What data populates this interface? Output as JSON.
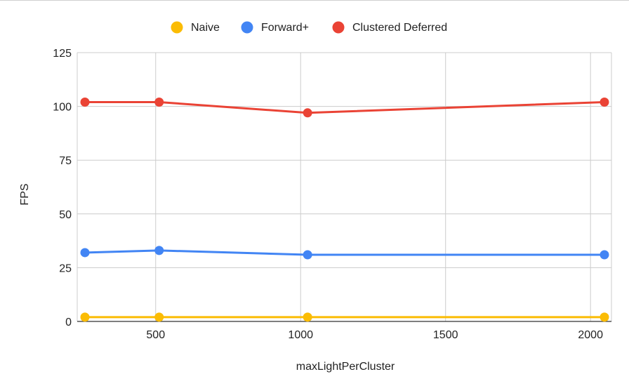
{
  "chart_data": {
    "type": "line",
    "title": "",
    "xlabel": "maxLightPerCluster",
    "ylabel": "FPS",
    "x": [
      256,
      512,
      1024,
      2048
    ],
    "xlim": [
      256,
      2048
    ],
    "ylim": [
      0,
      125
    ],
    "x_ticks": [
      500,
      1000,
      1500,
      2000
    ],
    "y_ticks": [
      0,
      25,
      50,
      75,
      100,
      125
    ],
    "grid": true,
    "legend_position": "top",
    "series": [
      {
        "name": "Naive",
        "color": "#fbbc04",
        "values": [
          2,
          2,
          2,
          2
        ]
      },
      {
        "name": "Forward+",
        "color": "#4285f4",
        "values": [
          32,
          33,
          31,
          31
        ]
      },
      {
        "name": "Clustered Deferred",
        "color": "#ea4335",
        "values": [
          102,
          102,
          97,
          102
        ]
      }
    ]
  }
}
